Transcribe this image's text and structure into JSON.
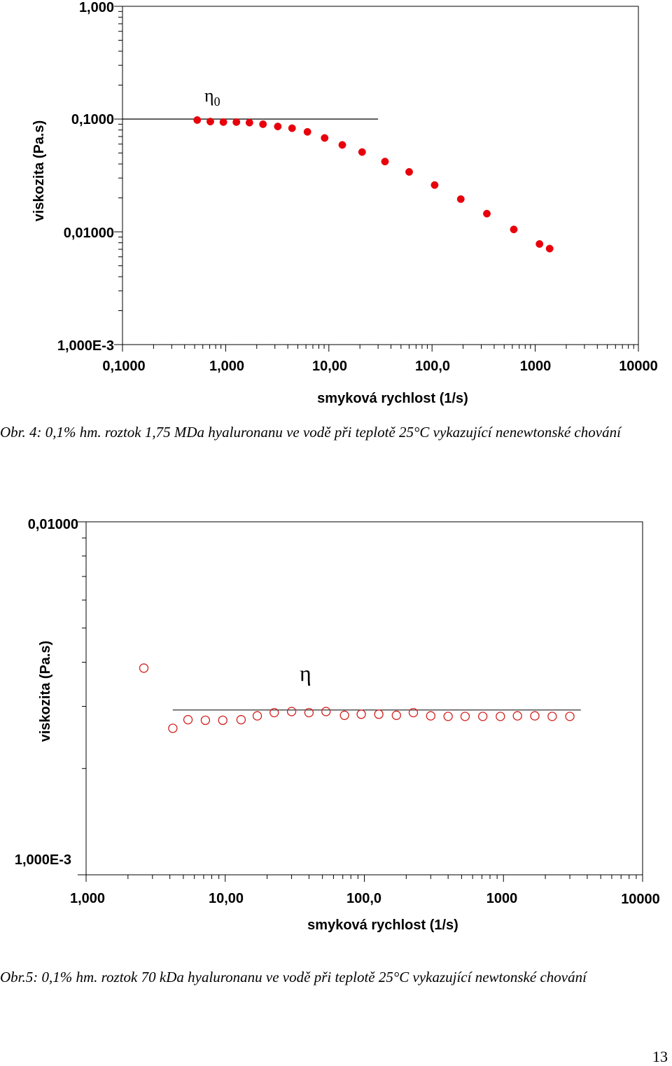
{
  "charts": [
    {
      "type": "scatter",
      "x_scale": "log",
      "y_scale": "log",
      "xlabel": "smyková rychlost (1/s)",
      "ylabel": "viskozita (Pa.s)",
      "xlim": [
        0.1,
        10000
      ],
      "ylim": [
        0.001,
        1
      ],
      "x_ticks": [
        "0,1000",
        "1,000",
        "10,00",
        "100,0",
        "1000",
        "10000"
      ],
      "y_ticks": [
        "1,000",
        "0,1000",
        "0,01000",
        "1,000E-3"
      ],
      "annotation": "η",
      "annotation_sub": "0",
      "reference_line": {
        "y": 0.1,
        "x_from": 0.1,
        "x_to": 30
      },
      "marker": "filled-circle",
      "marker_color": "#e8000b",
      "series": [
        {
          "x": [
            0.53,
            0.71,
            0.95,
            1.27,
            1.7,
            2.3,
            3.2,
            4.4,
            6.2,
            9.1,
            13.5,
            21,
            35,
            60,
            106,
            190,
            340,
            620,
            1100,
            1380
          ],
          "y": [
            0.098,
            0.095,
            0.094,
            0.094,
            0.093,
            0.09,
            0.086,
            0.083,
            0.077,
            0.068,
            0.059,
            0.051,
            0.042,
            0.034,
            0.026,
            0.0195,
            0.0145,
            0.0105,
            0.0078,
            0.0071
          ]
        }
      ]
    },
    {
      "type": "scatter",
      "x_scale": "log",
      "y_scale": "log",
      "xlabel": "smyková rychlost (1/s)",
      "ylabel": "viskozita (Pa.s)",
      "xlim": [
        1,
        10000
      ],
      "ylim": [
        0.001,
        0.01
      ],
      "x_ticks": [
        "1,000",
        "10,00",
        "100,0",
        "1000",
        "10000"
      ],
      "y_ticks": [
        "0,01000",
        "1,000E-3"
      ],
      "annotation": "η",
      "reference_line": {
        "y": 0.00293,
        "x_from": 4.2,
        "x_to": 3600
      },
      "marker": "open-circle",
      "marker_color": "#d42020",
      "series": [
        {
          "x": [
            2.6,
            4.2,
            5.4,
            7.2,
            9.6,
            13,
            17,
            22.5,
            30,
            40,
            53,
            72,
            95,
            127,
            170,
            225,
            300,
            400,
            530,
            710,
            950,
            1260,
            1680,
            2240,
            3000
          ],
          "y": [
            0.00385,
            0.0026,
            0.00275,
            0.00274,
            0.00274,
            0.00275,
            0.00282,
            0.00288,
            0.0029,
            0.00288,
            0.0029,
            0.00283,
            0.00285,
            0.00285,
            0.00283,
            0.00288,
            0.00282,
            0.00281,
            0.00281,
            0.00281,
            0.00281,
            0.00282,
            0.00282,
            0.00281,
            0.00281
          ]
        }
      ]
    }
  ],
  "captions": [
    "Obr. 4: 0,1% hm. roztok 1,75 MDa hyaluronanu  ve vodě při teplotě 25°C vykazující nenewtonské chování",
    "Obr.5: 0,1% hm. roztok 70 kDa hyaluronanu ve vodě při teplotě 25°C vykazující newtonské chování"
  ],
  "page_number": "13"
}
